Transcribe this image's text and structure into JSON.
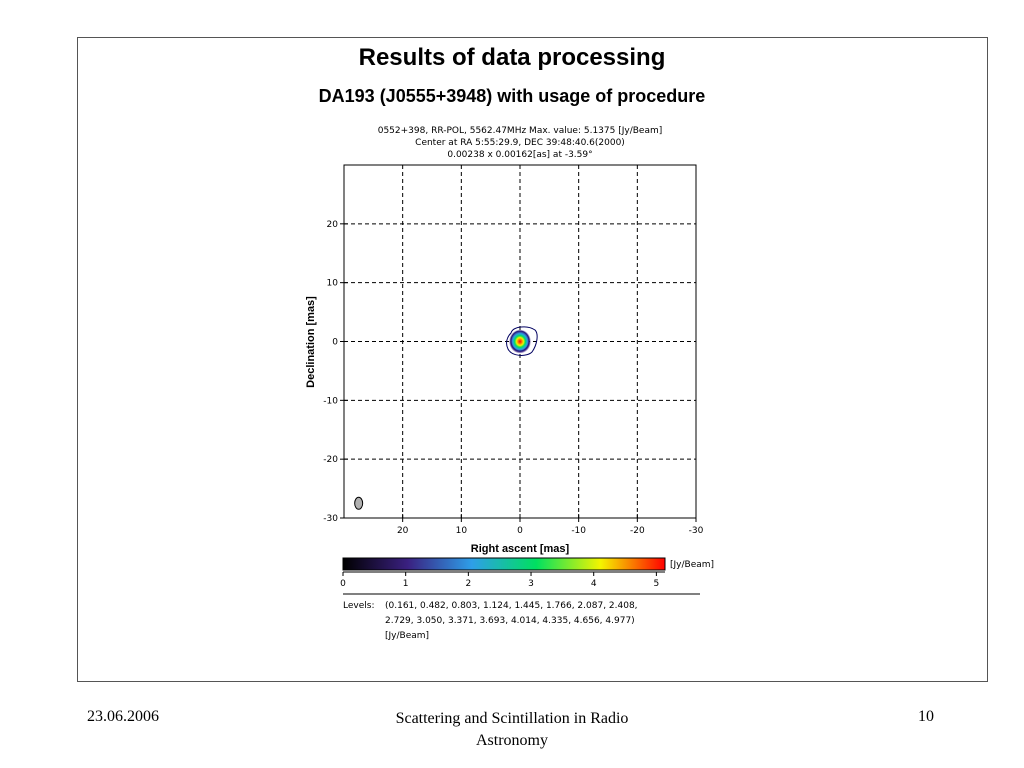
{
  "slide": {
    "title": "Results of data processing",
    "subtitle": "DA193 (J0555+3948) with usage of procedure"
  },
  "figure": {
    "header_lines": [
      "0552+398, RR-POL, 5562.47MHz Max. value: 5.1375 [Jy/Beam]",
      "Center at RA 5:55:29.9, DEC 39:48:40.6(2000)",
      "0.00238 x 0.00162[as] at -3.59°"
    ],
    "colorbar_unit": "[Jy/Beam]",
    "colorbar_ticks": [
      "0",
      "1",
      "2",
      "3",
      "4",
      "5"
    ],
    "colorbar_colors": [
      "#000000",
      "#3a2080",
      "#2e9ee8",
      "#00e060",
      "#f4f400",
      "#ff0000"
    ],
    "levels_label": "Levels:",
    "levels_lines": [
      "(0.161, 0.482, 0.803, 1.124, 1.445, 1.766, 2.087, 2.408,",
      "2.729, 3.050, 3.371, 3.693, 4.014, 4.335, 4.656, 4.977)",
      "[Jy/Beam]"
    ]
  },
  "chart_data": {
    "type": "heatmap",
    "title": "0552+398, RR-POL, 5562.47MHz Max. value: 5.1375 [Jy/Beam]",
    "xlabel": "Right ascent [mas]",
    "ylabel": "Declination [mas]",
    "xlim": [
      30,
      -30
    ],
    "ylim": [
      -30,
      30
    ],
    "xticks": [
      20,
      10,
      0,
      -10,
      -20,
      -30
    ],
    "yticks": [
      20,
      10,
      0,
      -10,
      -20,
      -30
    ],
    "grid": true,
    "max_value": 5.1375,
    "peak": {
      "x": 0,
      "y": 0,
      "value": 5.1375
    },
    "beam": {
      "x": 27.5,
      "y": -27.5,
      "major_mas": 2.38,
      "minor_mas": 1.62,
      "pa_deg": -3.59
    }
  },
  "footer": {
    "date": "23.06.2006",
    "center_line1": "Scattering and Scintillation in Radio",
    "center_line2": "Astronomy",
    "page": "10"
  }
}
